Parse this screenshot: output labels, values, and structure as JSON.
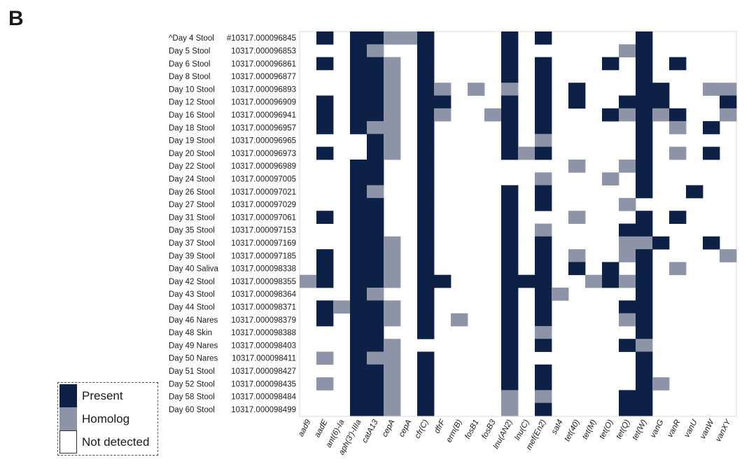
{
  "panel_label": "B",
  "chart_data": {
    "type": "heatmap",
    "title": "",
    "xlabel": "",
    "ylabel": "",
    "colors": {
      "present": "#0c2145",
      "homolog": "#8e94a8",
      "not_detected": "#ffffff"
    },
    "legend": {
      "placement": "bottom-left",
      "items": [
        {
          "label": "Present",
          "value": 2
        },
        {
          "label": "Homolog",
          "value": 1
        },
        {
          "label": "Not detected",
          "value": 0
        }
      ]
    },
    "columns": [
      "aad9",
      "aadE",
      "ant(6)-Ia",
      "aph(3')-IIIa",
      "catA13",
      "cepA",
      "cepA",
      "cfr(C)",
      "dfrF",
      "erm(B)",
      "fosB1",
      "fosB3",
      "lnu(AN2)",
      "lnu(C)",
      "mef(En2)",
      "sat4",
      "tet(40)",
      "tet(M)",
      "tet(O)",
      "tet(Q)",
      "tet(W)",
      "vanG",
      "vanR",
      "vanU",
      "vanW",
      "vanXY"
    ],
    "rows": [
      {
        "sample": "^Day 4 Stool",
        "id": "#10317.000096845",
        "values": [
          0,
          2,
          0,
          2,
          2,
          1,
          1,
          2,
          0,
          0,
          0,
          0,
          2,
          0,
          2,
          0,
          0,
          0,
          0,
          0,
          2,
          0,
          0,
          0,
          0,
          0
        ]
      },
      {
        "sample": "Day 5 Stool",
        "id": "10317.000096853",
        "values": [
          0,
          0,
          0,
          2,
          1,
          0,
          0,
          2,
          0,
          0,
          0,
          0,
          2,
          0,
          0,
          0,
          0,
          0,
          0,
          1,
          2,
          0,
          0,
          0,
          0,
          0
        ]
      },
      {
        "sample": "Day 6 Stool",
        "id": "10317.000096861",
        "values": [
          0,
          2,
          0,
          2,
          2,
          1,
          0,
          2,
          0,
          0,
          0,
          0,
          2,
          0,
          2,
          0,
          0,
          0,
          2,
          0,
          2,
          0,
          2,
          0,
          0,
          0
        ]
      },
      {
        "sample": "Day 8 Stool",
        "id": "10317.000096877",
        "values": [
          0,
          0,
          0,
          2,
          2,
          1,
          0,
          2,
          0,
          0,
          0,
          0,
          2,
          0,
          2,
          0,
          0,
          0,
          0,
          0,
          2,
          0,
          0,
          0,
          0,
          0
        ]
      },
      {
        "sample": "Day 10 Stool",
        "id": "10317.000096893",
        "values": [
          0,
          0,
          0,
          2,
          2,
          1,
          0,
          2,
          1,
          0,
          1,
          0,
          1,
          0,
          2,
          0,
          2,
          0,
          0,
          0,
          2,
          2,
          0,
          0,
          1,
          1
        ]
      },
      {
        "sample": "Day 12 Stool",
        "id": "10317.000096909",
        "values": [
          0,
          2,
          0,
          2,
          2,
          1,
          0,
          2,
          2,
          0,
          0,
          0,
          2,
          0,
          2,
          0,
          2,
          0,
          0,
          2,
          2,
          2,
          0,
          0,
          0,
          2
        ]
      },
      {
        "sample": "Day 16 Stool",
        "id": "10317.000096941",
        "values": [
          0,
          2,
          0,
          2,
          2,
          1,
          0,
          2,
          1,
          0,
          0,
          1,
          2,
          0,
          2,
          0,
          0,
          0,
          2,
          1,
          2,
          1,
          2,
          0,
          0,
          1
        ]
      },
      {
        "sample": "Day 18 Stool",
        "id": "10317.000096957",
        "values": [
          0,
          2,
          0,
          2,
          1,
          1,
          0,
          2,
          0,
          0,
          0,
          0,
          2,
          0,
          2,
          0,
          0,
          0,
          0,
          0,
          2,
          0,
          1,
          0,
          2,
          0
        ]
      },
      {
        "sample": "Day 19 Stool",
        "id": "10317.000096965",
        "values": [
          0,
          0,
          0,
          0,
          2,
          1,
          0,
          2,
          0,
          0,
          0,
          0,
          2,
          0,
          1,
          0,
          0,
          0,
          0,
          0,
          2,
          0,
          0,
          0,
          0,
          0
        ]
      },
      {
        "sample": "Day 20 Stool",
        "id": "10317.000096973",
        "values": [
          0,
          2,
          0,
          0,
          2,
          1,
          0,
          2,
          0,
          0,
          0,
          0,
          2,
          1,
          2,
          0,
          0,
          0,
          0,
          0,
          2,
          0,
          1,
          0,
          2,
          0
        ]
      },
      {
        "sample": "Day 22 Stool",
        "id": "10317.000096989",
        "values": [
          0,
          0,
          0,
          2,
          2,
          0,
          0,
          2,
          0,
          0,
          0,
          0,
          0,
          0,
          0,
          0,
          1,
          0,
          0,
          1,
          2,
          0,
          0,
          0,
          0,
          0
        ]
      },
      {
        "sample": "Day 24 Stool",
        "id": "10317.000097005",
        "values": [
          0,
          0,
          0,
          2,
          2,
          0,
          0,
          2,
          0,
          0,
          0,
          0,
          0,
          0,
          1,
          0,
          0,
          0,
          1,
          0,
          2,
          0,
          0,
          0,
          0,
          0
        ]
      },
      {
        "sample": "Day 26 Stool",
        "id": "10317.000097021",
        "values": [
          0,
          0,
          0,
          2,
          1,
          0,
          0,
          2,
          0,
          0,
          0,
          0,
          2,
          0,
          2,
          0,
          0,
          0,
          0,
          0,
          2,
          0,
          0,
          2,
          0,
          0
        ]
      },
      {
        "sample": "Day 27 Stool",
        "id": "10317.000097029",
        "values": [
          0,
          0,
          0,
          2,
          2,
          0,
          0,
          2,
          0,
          0,
          0,
          0,
          2,
          0,
          2,
          0,
          0,
          0,
          0,
          1,
          0,
          0,
          0,
          0,
          0,
          0
        ]
      },
      {
        "sample": "Day 31 Stool",
        "id": "10317.000097061",
        "values": [
          0,
          2,
          0,
          2,
          2,
          0,
          0,
          2,
          0,
          0,
          0,
          0,
          2,
          0,
          0,
          0,
          1,
          0,
          0,
          0,
          2,
          0,
          2,
          0,
          0,
          0
        ]
      },
      {
        "sample": "Day 35 Stool",
        "id": "10317.000097153",
        "values": [
          0,
          0,
          0,
          2,
          2,
          0,
          0,
          2,
          0,
          0,
          0,
          0,
          2,
          0,
          1,
          0,
          0,
          0,
          0,
          2,
          2,
          0,
          0,
          0,
          0,
          0
        ]
      },
      {
        "sample": "Day 37 Stool",
        "id": "10317.000097169",
        "values": [
          0,
          0,
          0,
          2,
          2,
          1,
          0,
          2,
          0,
          0,
          0,
          0,
          2,
          0,
          2,
          0,
          0,
          0,
          0,
          1,
          1,
          2,
          0,
          0,
          2,
          0
        ]
      },
      {
        "sample": "Day 39 Stool",
        "id": "10317.000097185",
        "values": [
          0,
          2,
          0,
          2,
          2,
          1,
          0,
          2,
          0,
          0,
          0,
          0,
          2,
          0,
          2,
          0,
          1,
          0,
          0,
          1,
          2,
          0,
          0,
          0,
          0,
          1
        ]
      },
      {
        "sample": "Day 40 Saliva",
        "id": "10317.000098338",
        "values": [
          0,
          2,
          0,
          2,
          2,
          1,
          0,
          2,
          0,
          0,
          0,
          0,
          2,
          0,
          2,
          0,
          2,
          0,
          2,
          0,
          2,
          0,
          1,
          0,
          0,
          0
        ]
      },
      {
        "sample": "Day 42 Stool",
        "id": "10317.000098355",
        "values": [
          1,
          2,
          0,
          2,
          2,
          1,
          0,
          2,
          2,
          0,
          0,
          0,
          2,
          2,
          2,
          0,
          0,
          1,
          2,
          1,
          2,
          0,
          0,
          0,
          0,
          0
        ]
      },
      {
        "sample": "Day 43 Stool",
        "id": "10317.000098364",
        "values": [
          0,
          0,
          0,
          2,
          1,
          0,
          0,
          2,
          0,
          0,
          0,
          0,
          2,
          0,
          2,
          1,
          0,
          0,
          0,
          0,
          2,
          0,
          0,
          0,
          0,
          0
        ]
      },
      {
        "sample": "Day 44 Stool",
        "id": "10317.000098371",
        "values": [
          0,
          2,
          1,
          2,
          2,
          1,
          0,
          2,
          0,
          0,
          0,
          0,
          2,
          0,
          2,
          0,
          0,
          0,
          0,
          2,
          2,
          0,
          0,
          0,
          0,
          0
        ]
      },
      {
        "sample": "Day 46 Nares",
        "id": "10317.000098379",
        "values": [
          0,
          2,
          0,
          2,
          2,
          1,
          0,
          2,
          0,
          1,
          0,
          0,
          2,
          0,
          2,
          0,
          0,
          0,
          0,
          1,
          2,
          0,
          0,
          0,
          0,
          0
        ]
      },
      {
        "sample": "Day 48 Skin",
        "id": "10317.000098388",
        "values": [
          0,
          0,
          0,
          2,
          2,
          0,
          0,
          2,
          0,
          0,
          0,
          0,
          2,
          0,
          1,
          0,
          0,
          0,
          0,
          0,
          2,
          0,
          0,
          0,
          0,
          0
        ]
      },
      {
        "sample": "Day 49 Nares",
        "id": "10317.000098403",
        "values": [
          0,
          0,
          0,
          2,
          2,
          1,
          0,
          0,
          0,
          0,
          0,
          0,
          2,
          0,
          2,
          0,
          0,
          0,
          0,
          2,
          1,
          0,
          0,
          0,
          0,
          0
        ]
      },
      {
        "sample": "Day 50 Nares",
        "id": "10317.000098411",
        "values": [
          0,
          1,
          0,
          2,
          1,
          1,
          0,
          2,
          0,
          0,
          0,
          0,
          2,
          0,
          0,
          0,
          0,
          0,
          0,
          0,
          2,
          0,
          0,
          0,
          0,
          0
        ]
      },
      {
        "sample": "Day 51 Stool",
        "id": "10317.000098427",
        "values": [
          0,
          0,
          0,
          2,
          2,
          1,
          0,
          2,
          0,
          0,
          0,
          0,
          2,
          0,
          2,
          0,
          0,
          0,
          0,
          0,
          2,
          0,
          0,
          0,
          0,
          0
        ]
      },
      {
        "sample": "Day 52 Stool",
        "id": "10317.000098435",
        "values": [
          0,
          1,
          0,
          2,
          2,
          1,
          0,
          2,
          0,
          0,
          0,
          0,
          2,
          0,
          2,
          0,
          0,
          0,
          0,
          0,
          2,
          1,
          0,
          0,
          0,
          0
        ]
      },
      {
        "sample": "Day 58 Stool",
        "id": "10317.000098484",
        "values": [
          0,
          0,
          0,
          2,
          2,
          1,
          0,
          2,
          0,
          0,
          0,
          0,
          1,
          0,
          1,
          0,
          0,
          0,
          0,
          2,
          2,
          0,
          0,
          0,
          0,
          0
        ]
      },
      {
        "sample": "Day 60 Stool",
        "id": "10317.000098499",
        "values": [
          0,
          0,
          0,
          2,
          2,
          1,
          0,
          2,
          0,
          0,
          0,
          0,
          1,
          0,
          2,
          0,
          0,
          0,
          0,
          2,
          2,
          0,
          0,
          0,
          0,
          0
        ]
      }
    ]
  }
}
